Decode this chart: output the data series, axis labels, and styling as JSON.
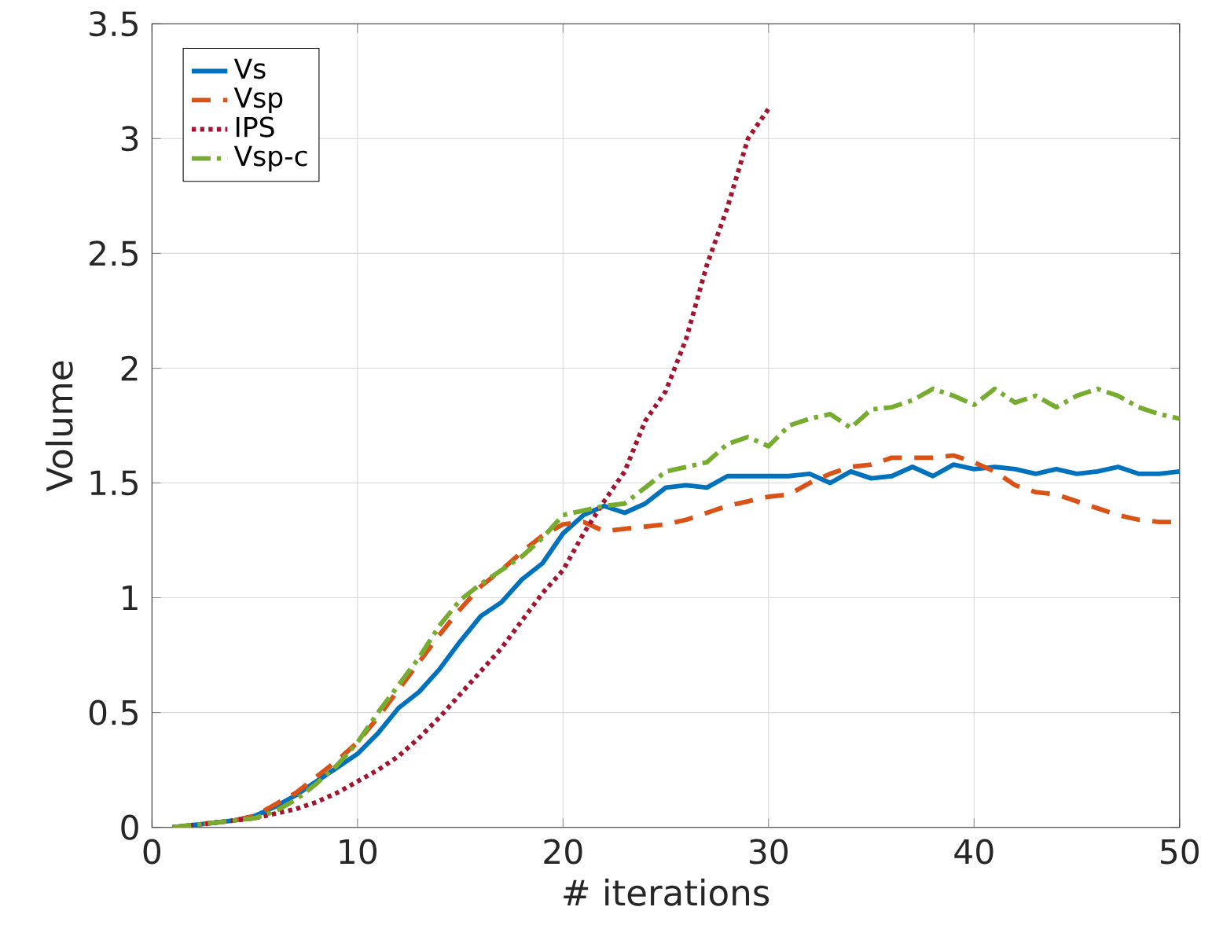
{
  "chart_data": {
    "type": "line",
    "xlabel": "# iterations",
    "ylabel": "Volume",
    "x": [
      1,
      2,
      3,
      4,
      5,
      6,
      7,
      8,
      9,
      10,
      11,
      12,
      13,
      14,
      15,
      16,
      17,
      18,
      19,
      20,
      21,
      22,
      23,
      24,
      25,
      26,
      27,
      28,
      29,
      30,
      31,
      32,
      33,
      34,
      35,
      36,
      37,
      38,
      39,
      40,
      41,
      42,
      43,
      44,
      45,
      46,
      47,
      48,
      49,
      50
    ],
    "series": [
      {
        "name": "Vs",
        "color": "#0072bd",
        "line_style": "solid",
        "values": [
          0,
          0.01,
          0.02,
          0.03,
          0.05,
          0.09,
          0.14,
          0.2,
          0.26,
          0.32,
          0.41,
          0.52,
          0.59,
          0.69,
          0.81,
          0.92,
          0.98,
          1.08,
          1.15,
          1.28,
          1.36,
          1.4,
          1.37,
          1.41,
          1.48,
          1.49,
          1.48,
          1.53,
          1.53,
          1.53,
          1.53,
          1.54,
          1.5,
          1.55,
          1.52,
          1.53,
          1.57,
          1.53,
          1.58,
          1.56,
          1.57,
          1.56,
          1.54,
          1.56,
          1.54,
          1.55,
          1.57,
          1.54,
          1.54,
          1.55
        ]
      },
      {
        "name": "Vsp",
        "color": "#d95319",
        "line_style": "dashed",
        "values": [
          0,
          0.01,
          0.02,
          0.03,
          0.05,
          0.1,
          0.15,
          0.22,
          0.29,
          0.37,
          0.48,
          0.6,
          0.72,
          0.84,
          0.95,
          1.05,
          1.12,
          1.2,
          1.27,
          1.32,
          1.33,
          1.29,
          1.3,
          1.31,
          1.32,
          1.34,
          1.37,
          1.4,
          1.42,
          1.44,
          1.45,
          1.5,
          1.54,
          1.57,
          1.58,
          1.61,
          1.61,
          1.61,
          1.62,
          1.59,
          1.55,
          1.49,
          1.46,
          1.45,
          1.42,
          1.39,
          1.36,
          1.34,
          1.33,
          1.33
        ]
      },
      {
        "name": "IPS",
        "color": "#a2142f",
        "line_style": "dotted",
        "values": [
          0,
          0.01,
          0.02,
          0.03,
          0.04,
          0.06,
          0.08,
          0.11,
          0.15,
          0.2,
          0.25,
          0.31,
          0.39,
          0.48,
          0.58,
          0.68,
          0.78,
          0.9,
          1.02,
          1.12,
          1.28,
          1.42,
          1.55,
          1.77,
          1.9,
          2.13,
          2.45,
          2.7,
          3.0,
          3.13,
          null,
          null,
          null,
          null,
          null,
          null,
          null,
          null,
          null,
          null,
          null,
          null,
          null,
          null,
          null,
          null,
          null,
          null,
          null,
          null
        ]
      },
      {
        "name": "Vsp-c",
        "color": "#77ac30",
        "line_style": "dashdot",
        "values": [
          0,
          0.01,
          0.02,
          0.03,
          0.04,
          0.07,
          0.12,
          0.19,
          0.27,
          0.37,
          0.5,
          0.62,
          0.74,
          0.88,
          0.99,
          1.06,
          1.12,
          1.18,
          1.26,
          1.36,
          1.38,
          1.4,
          1.41,
          1.48,
          1.55,
          1.57,
          1.59,
          1.67,
          1.7,
          1.66,
          1.75,
          1.78,
          1.8,
          1.74,
          1.82,
          1.83,
          1.86,
          1.91,
          1.88,
          1.84,
          1.91,
          1.85,
          1.88,
          1.83,
          1.88,
          1.91,
          1.88,
          1.83,
          1.8,
          1.78
        ]
      }
    ],
    "xlim": [
      0,
      50
    ],
    "xticks": [
      0,
      10,
      20,
      30,
      40,
      50
    ],
    "ylim": [
      0,
      3.5
    ],
    "yticks": [
      0,
      0.5,
      1,
      1.5,
      2,
      2.5,
      3,
      3.5
    ],
    "grid": true,
    "legend": "top left",
    "marker": "none"
  }
}
